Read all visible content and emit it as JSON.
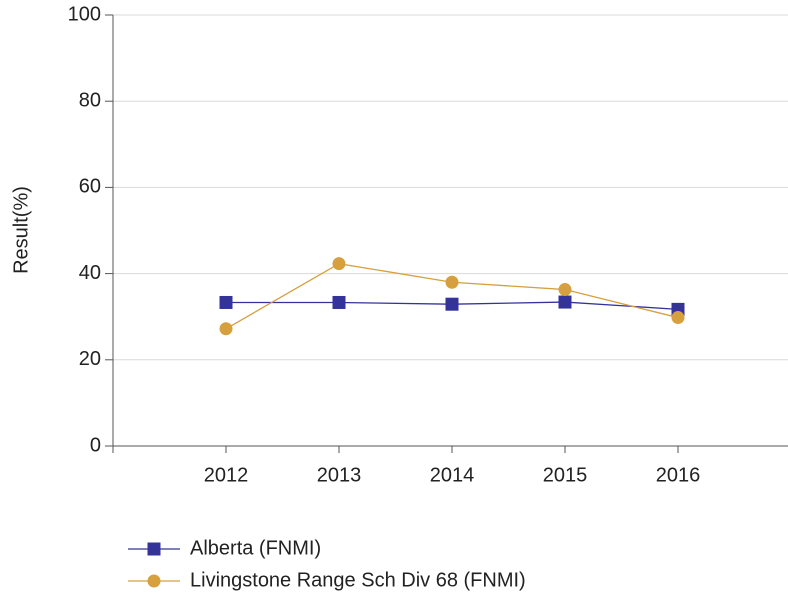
{
  "chart_data": {
    "type": "line",
    "y_label": "Result(%)",
    "categories": [
      "2012",
      "2013",
      "2014",
      "2015",
      "2016"
    ],
    "series": [
      {
        "name": "Alberta (FNMI)",
        "color": "#33339a",
        "marker": "square",
        "values": [
          33.3,
          33.3,
          32.9,
          33.4,
          31.7
        ]
      },
      {
        "name": "Livingstone Range Sch Div 68 (FNMI)",
        "color": "#d6a03e",
        "marker": "circle",
        "values": [
          27.2,
          42.3,
          38.0,
          36.3,
          29.8
        ]
      }
    ],
    "ylim": [
      0,
      100
    ],
    "yticks": [
      0,
      20,
      40,
      60,
      80,
      100
    ],
    "grid": true
  }
}
